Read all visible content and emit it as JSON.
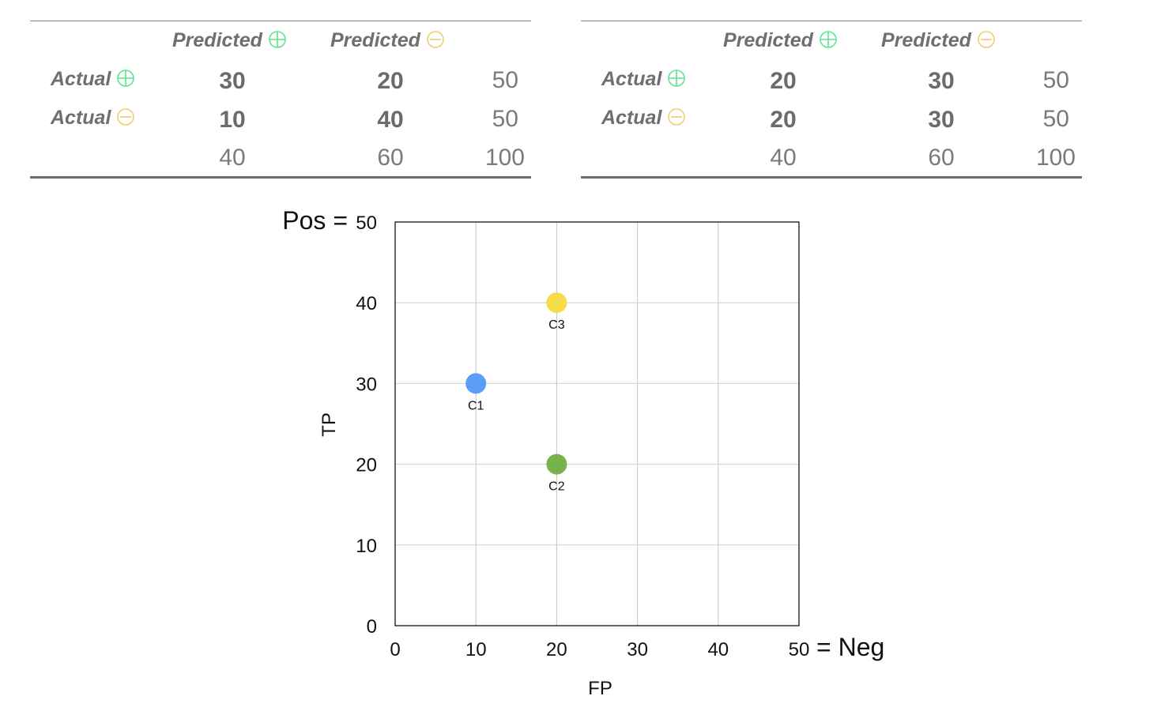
{
  "colors": {
    "plus": "#5ee38f",
    "minus": "#f0cd6a",
    "c1": "#5b9cf6",
    "c2": "#78b24b",
    "c3": "#f7dc49"
  },
  "tables": [
    {
      "col_headers": [
        "Predicted",
        "Predicted"
      ],
      "row_labels": [
        "Actual",
        "Actual"
      ],
      "cells": [
        [
          "30",
          "20"
        ],
        [
          "10",
          "40"
        ]
      ],
      "row_totals": [
        "50",
        "50"
      ],
      "col_totals": [
        "40",
        "60"
      ],
      "grand_total": "100"
    },
    {
      "col_headers": [
        "Predicted",
        "Predicted"
      ],
      "row_labels": [
        "Actual",
        "Actual"
      ],
      "cells": [
        [
          "20",
          "30"
        ],
        [
          "20",
          "30"
        ]
      ],
      "row_totals": [
        "50",
        "50"
      ],
      "col_totals": [
        "40",
        "60"
      ],
      "grand_total": "100"
    }
  ],
  "chart_data": {
    "type": "scatter",
    "xlabel": "FP",
    "ylabel": "TP",
    "xlim": [
      0,
      50
    ],
    "ylim": [
      0,
      50
    ],
    "xticks": [
      "0",
      "10",
      "20",
      "30",
      "40",
      "50"
    ],
    "yticks": [
      "0",
      "10",
      "20",
      "30",
      "40",
      "50"
    ],
    "x_extra_label": "= Neg",
    "y_extra_label": "Pos =",
    "grid": true,
    "points": [
      {
        "label": "C1",
        "x": 10,
        "y": 30,
        "color": "#5b9cf6"
      },
      {
        "label": "C2",
        "x": 20,
        "y": 20,
        "color": "#78b24b"
      },
      {
        "label": "C3",
        "x": 20,
        "y": 40,
        "color": "#f7dc49"
      }
    ]
  }
}
